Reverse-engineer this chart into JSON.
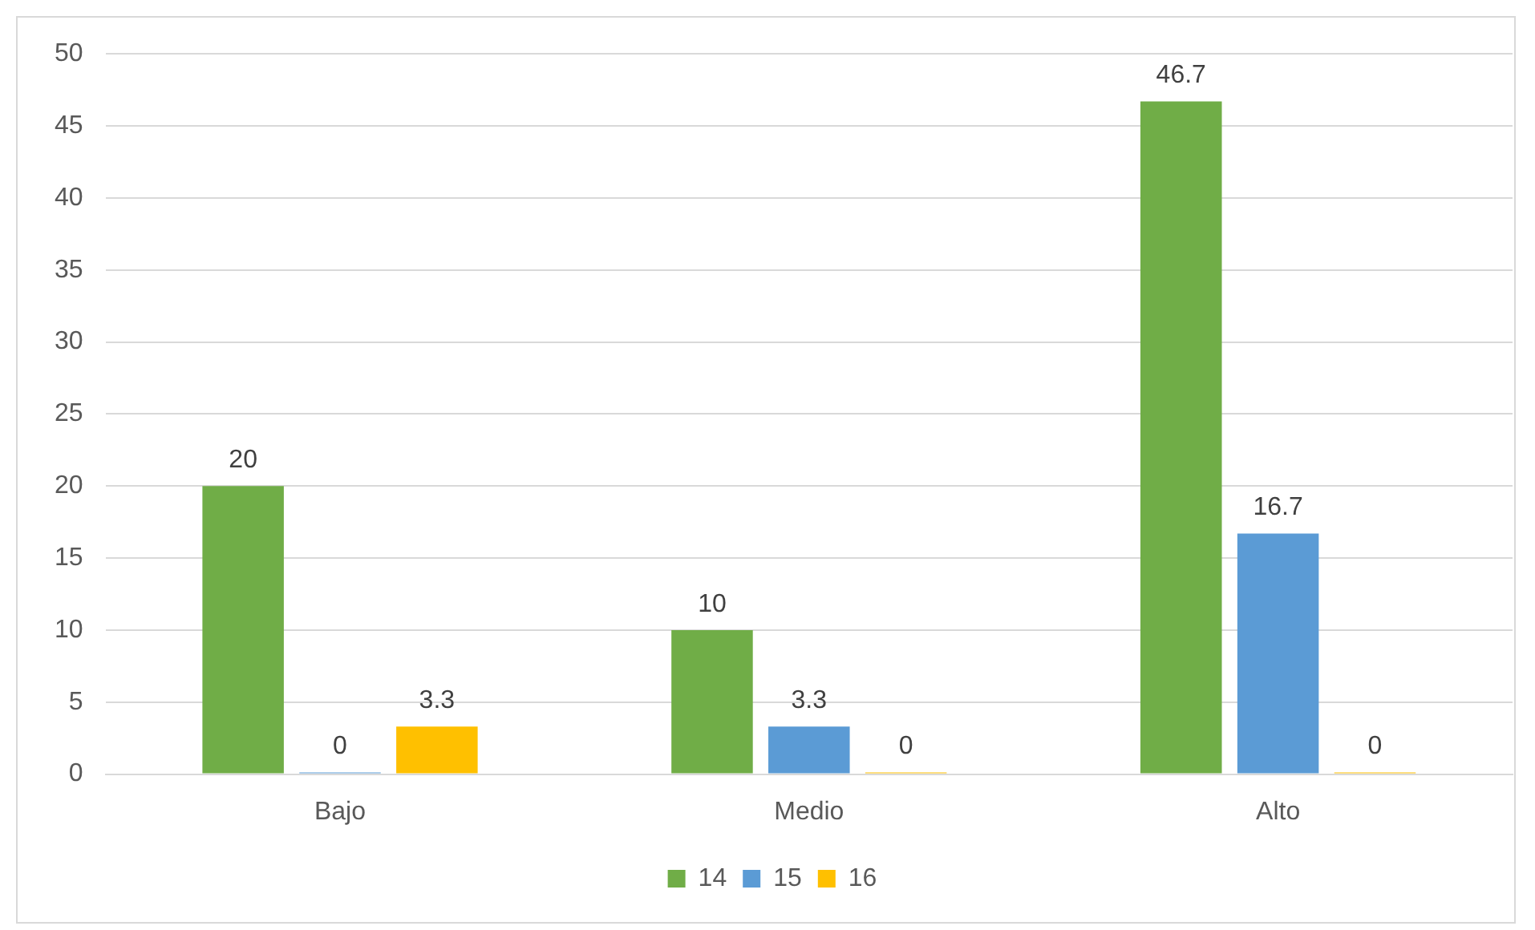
{
  "chart_data": {
    "type": "bar",
    "categories": [
      "Bajo",
      "Medio",
      "Alto"
    ],
    "series": [
      {
        "name": "14",
        "color": "#70ad47",
        "values": [
          20,
          10,
          46.7
        ]
      },
      {
        "name": "15",
        "color": "#5b9bd5",
        "values": [
          0,
          3.3,
          16.7
        ]
      },
      {
        "name": "16",
        "color": "#ffc000",
        "values": [
          3.3,
          0,
          0
        ]
      }
    ],
    "ylim": [
      0,
      50
    ],
    "yticks": [
      0,
      5,
      10,
      15,
      20,
      25,
      30,
      35,
      40,
      45,
      50
    ],
    "grid": "y",
    "legend": "bottom",
    "data_labels": true
  }
}
